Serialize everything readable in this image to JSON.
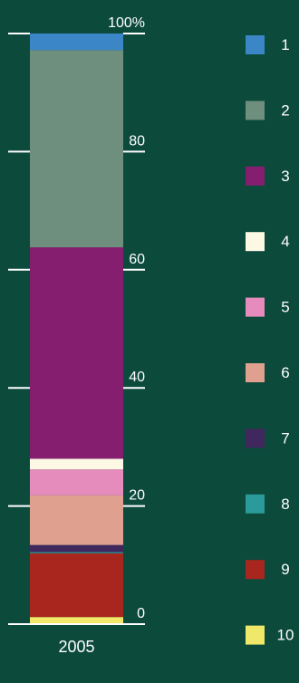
{
  "chart_data": {
    "type": "bar",
    "stacked": true,
    "categories": [
      "2005"
    ],
    "y_ticks": [
      "0",
      "20",
      "40",
      "60",
      "80",
      "100%"
    ],
    "ylim": [
      0,
      100
    ],
    "grid": false,
    "legend_position": "right",
    "series": [
      {
        "name": "10",
        "values": [
          1.2
        ],
        "color": "#f0e868"
      },
      {
        "name": "9",
        "values": [
          10.8
        ],
        "color": "#a8261e"
      },
      {
        "name": "8",
        "values": [
          0.2
        ],
        "color": "#2a9a9a"
      },
      {
        "name": "7",
        "values": [
          1.2
        ],
        "color": "#40285e"
      },
      {
        "name": "6",
        "values": [
          8.4
        ],
        "color": "#e0a090"
      },
      {
        "name": "5",
        "values": [
          4.4
        ],
        "color": "#e68cbc"
      },
      {
        "name": "4",
        "values": [
          1.8
        ],
        "color": "#fdf8e4"
      },
      {
        "name": "3",
        "values": [
          35.8
        ],
        "color": "#861e70"
      },
      {
        "name": "2",
        "values": [
          33.4
        ],
        "color": "#6e8e7e"
      },
      {
        "name": "1",
        "values": [
          2.8
        ],
        "color": "#3a86c6"
      }
    ]
  }
}
